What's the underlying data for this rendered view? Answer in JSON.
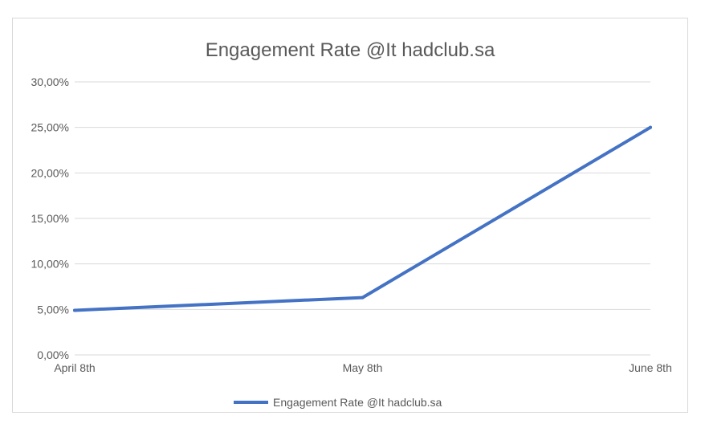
{
  "chart_data": {
    "type": "line",
    "title": "Engagement Rate @It  hadclub.sa",
    "categories": [
      "April 8th",
      "May 8th",
      "June 8th"
    ],
    "series": [
      {
        "name": "Engagement Rate @It  hadclub.sa",
        "values": [
          0.049,
          0.063,
          0.25
        ]
      }
    ],
    "ylim": [
      0,
      0.3
    ],
    "yticks": [
      {
        "value": 0.0,
        "label": "0,00%"
      },
      {
        "value": 0.05,
        "label": "5,00%"
      },
      {
        "value": 0.1,
        "label": "10,00%"
      },
      {
        "value": 0.15,
        "label": "15,00%"
      },
      {
        "value": 0.2,
        "label": "20,00%"
      },
      {
        "value": 0.25,
        "label": "25,00%"
      },
      {
        "value": 0.3,
        "label": "30,00%"
      }
    ],
    "grid": true,
    "legend_position": "bottom",
    "colors": {
      "series": "#4472c4",
      "grid": "#d9d9d9",
      "text": "#595959"
    }
  }
}
